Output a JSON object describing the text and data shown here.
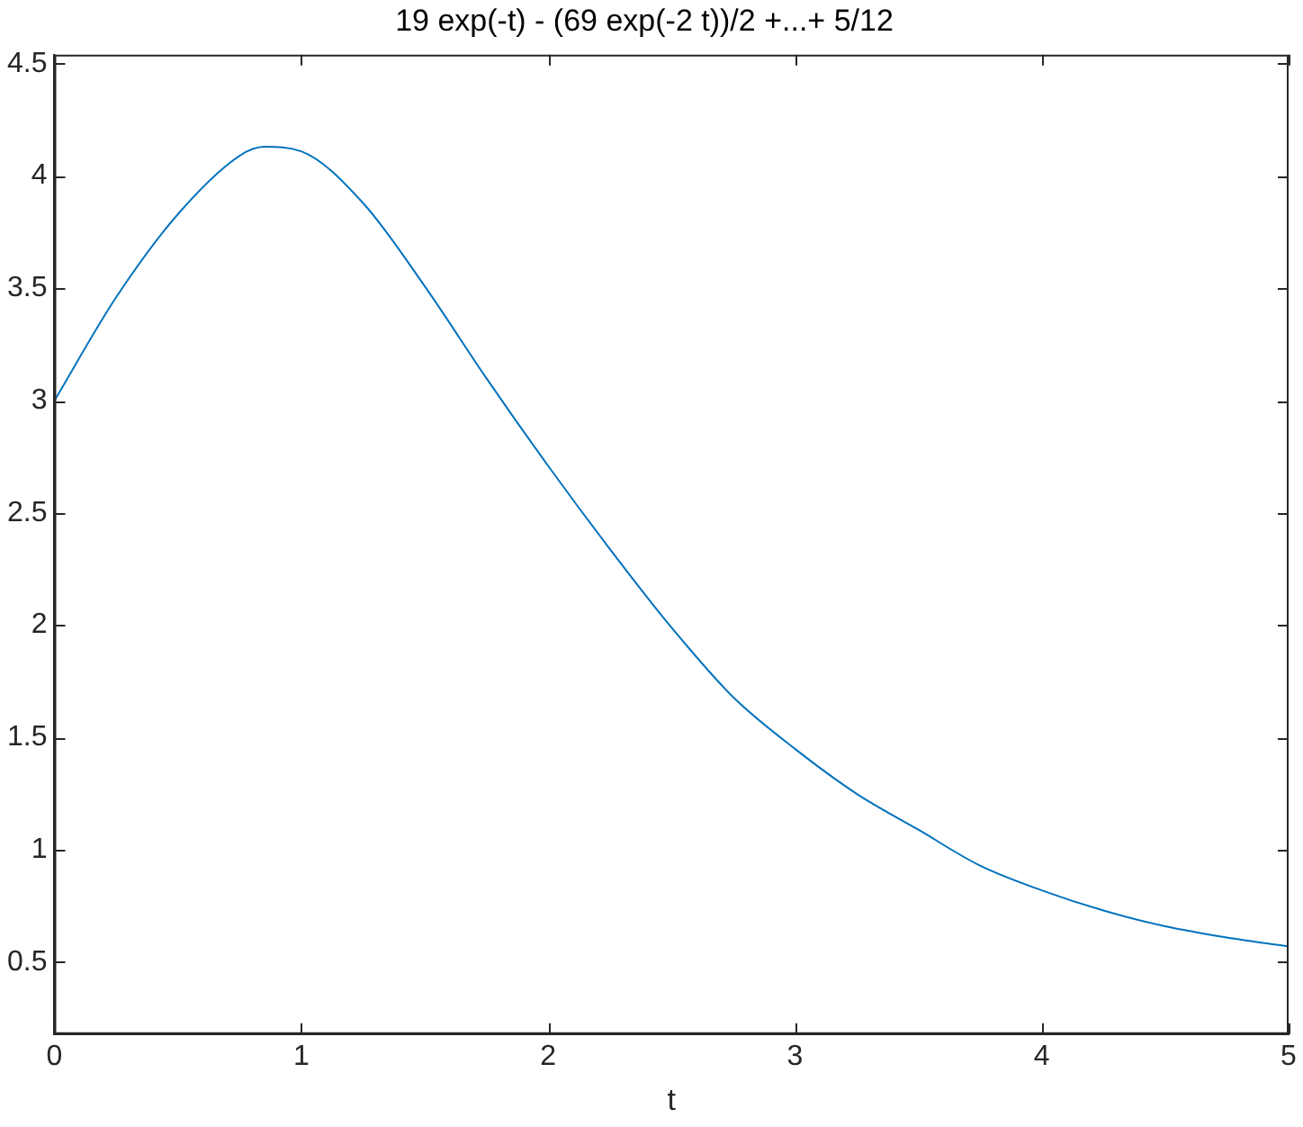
{
  "chart_data": {
    "type": "line",
    "title": "19 exp(-t) - (69 exp(-2 t))/2 +...+ 5/12",
    "xlabel": "t",
    "x": [
      0,
      0.25,
      0.5,
      0.75,
      0.85,
      1,
      1.25,
      1.5,
      1.75,
      2,
      2.25,
      2.5,
      2.75,
      3,
      3.25,
      3.5,
      3.75,
      4,
      4.25,
      4.5,
      4.75,
      5
    ],
    "series": [
      {
        "color": "#0072bd",
        "values": [
          3,
          3.46,
          3.83,
          4.09,
          4.13,
          4.11,
          3.88,
          3.51,
          3.1,
          2.71,
          2.34,
          1.99,
          1.68,
          1.45,
          1.25,
          1.09,
          0.93,
          0.82,
          0.73,
          0.66,
          0.61,
          0.57
        ]
      }
    ],
    "xlim": [
      0,
      5
    ],
    "xticks": [
      0,
      1,
      2,
      3,
      4,
      5
    ],
    "ylim": [
      0.18,
      4.54
    ],
    "yticks": [
      0.5,
      1,
      1.5,
      2,
      2.5,
      3,
      3.5,
      4,
      4.5
    ],
    "grid": false,
    "legend": false,
    "marker": "none",
    "line_style": "solid"
  }
}
